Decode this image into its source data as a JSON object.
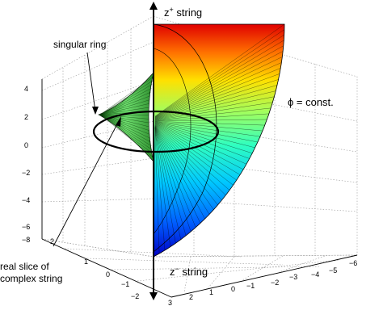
{
  "labels": {
    "z_plus": "z",
    "z_plus_sup": "+",
    "z_plus_tail": " string",
    "z_minus": "z",
    "z_minus_sup": "−",
    "z_minus_tail": " string",
    "singular_ring": "singular ring",
    "phi_const": "ϕ = const.",
    "real_slice_line1": "real slice of",
    "real_slice_line2": "complex string"
  },
  "axes": {
    "vertical_ticks": [
      "4",
      "2",
      "0",
      "−2",
      "−4",
      "−6",
      "−8"
    ],
    "left_ticks": [
      "2",
      "1",
      "0",
      "−1",
      "−2"
    ],
    "right_ticks": [
      "−6",
      "−5",
      "−4",
      "−3",
      "−2",
      "−1",
      "0",
      "1",
      "2",
      "3"
    ]
  },
  "colors": {
    "colormap": [
      "#0000c8",
      "#0060ff",
      "#00c8ff",
      "#30ffc0",
      "#a0ff60",
      "#ffe000",
      "#ff7000",
      "#e00000"
    ],
    "cone": "#4fc04f",
    "ring": "#000000"
  }
}
